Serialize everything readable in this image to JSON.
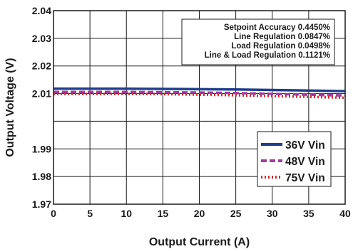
{
  "chart_data": {
    "type": "line",
    "xlabel": "Output Current (A)",
    "ylabel": "Output Voltage (V)",
    "xlim": [
      0,
      40
    ],
    "ylim": [
      1.97,
      2.04
    ],
    "xticks": [
      "0",
      "5",
      "10",
      "15",
      "20",
      "25",
      "30",
      "35",
      "40"
    ],
    "yticks": [
      "1.97",
      "1.98",
      "1.99",
      "2.01",
      "2.02",
      "2.03",
      "2.04"
    ],
    "grid": true,
    "legend_position": "bottom-right",
    "annotations": [
      "Setpoint Accuracy 0.4450%",
      "Line Regulation 0.0847%",
      "Load Regulation 0.0498%",
      "Line & Load Regulation 0.1121%"
    ],
    "series": [
      {
        "name": "36V Vin",
        "color": "#1f3e8c",
        "style": "solid",
        "x": [
          0,
          5,
          10,
          15,
          20,
          25,
          30,
          35,
          40
        ],
        "y": [
          2.0118,
          2.0118,
          2.0118,
          2.0117,
          2.0116,
          2.0115,
          2.0113,
          2.0111,
          2.0109
        ]
      },
      {
        "name": "48V Vin",
        "color": "#a03c9c",
        "style": "dash",
        "x": [
          0,
          5,
          10,
          15,
          20,
          25,
          30,
          35,
          40
        ],
        "y": [
          2.0106,
          2.0106,
          2.0106,
          2.0105,
          2.0104,
          2.0102,
          2.0099,
          2.0096,
          2.0093
        ]
      },
      {
        "name": "75V Vin",
        "color": "#d42a2a",
        "style": "dot",
        "x": [
          0,
          5,
          10,
          15,
          20,
          25,
          30,
          35,
          40
        ],
        "y": [
          2.0099,
          2.0099,
          2.0099,
          2.0098,
          2.0096,
          2.0094,
          2.0091,
          2.0088,
          2.0085
        ]
      }
    ]
  }
}
